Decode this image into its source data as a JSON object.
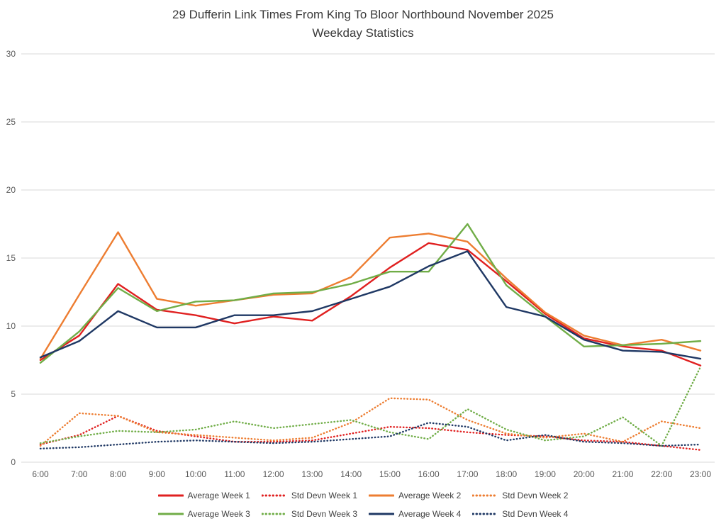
{
  "chart_data": {
    "type": "line",
    "title": "29 Dufferin Link Times From King To Bloor Northbound November 2025",
    "subtitle": "Weekday Statistics",
    "categories": [
      "6:00",
      "7:00",
      "8:00",
      "9:00",
      "10:00",
      "11:00",
      "12:00",
      "13:00",
      "14:00",
      "15:00",
      "16:00",
      "17:00",
      "18:00",
      "19:00",
      "20:00",
      "21:00",
      "22:00",
      "23:00"
    ],
    "xlabel": "",
    "ylabel": "",
    "ylim": [
      0,
      30
    ],
    "ytick_step": 5,
    "grid": "horizontal",
    "gridline_color": "#d9d9d9",
    "legend_position": "bottom",
    "series": [
      {
        "name": "Average Week 1",
        "color": "#e02020",
        "style": "solid",
        "values": [
          7.5,
          9.3,
          13.1,
          11.2,
          10.8,
          10.2,
          10.7,
          10.4,
          12.2,
          14.3,
          16.1,
          15.6,
          13.3,
          10.9,
          9.1,
          8.5,
          8.2,
          7.1
        ]
      },
      {
        "name": "Std Devn Week 1",
        "color": "#e02020",
        "style": "dotted",
        "values": [
          1.3,
          2.0,
          3.4,
          2.3,
          1.9,
          1.5,
          1.5,
          1.6,
          2.1,
          2.6,
          2.5,
          2.2,
          2.0,
          1.9,
          1.6,
          1.5,
          1.2,
          0.9
        ]
      },
      {
        "name": "Average Week 2",
        "color": "#ed7d31",
        "style": "solid",
        "values": [
          7.6,
          12.3,
          16.9,
          12.0,
          11.5,
          11.9,
          12.3,
          12.4,
          13.6,
          16.5,
          16.8,
          16.2,
          13.5,
          11.0,
          9.3,
          8.6,
          9.0,
          8.2
        ]
      },
      {
        "name": "Std Devn Week 2",
        "color": "#ed7d31",
        "style": "dotted",
        "values": [
          1.2,
          3.6,
          3.4,
          2.2,
          2.0,
          1.8,
          1.6,
          1.8,
          2.9,
          4.7,
          4.6,
          3.1,
          2.1,
          1.8,
          2.1,
          1.5,
          3.0,
          2.5
        ]
      },
      {
        "name": "Average Week 3",
        "color": "#70ad47",
        "style": "solid",
        "values": [
          7.3,
          9.6,
          12.8,
          11.1,
          11.8,
          11.9,
          12.4,
          12.5,
          13.1,
          14.0,
          14.0,
          17.5,
          13.0,
          10.7,
          8.5,
          8.6,
          8.7,
          8.9
        ]
      },
      {
        "name": "Std Devn Week 3",
        "color": "#70ad47",
        "style": "dotted",
        "values": [
          1.4,
          1.9,
          2.3,
          2.2,
          2.4,
          3.0,
          2.5,
          2.8,
          3.1,
          2.2,
          1.7,
          3.9,
          2.4,
          1.6,
          1.9,
          3.3,
          1.2,
          7.0
        ]
      },
      {
        "name": "Average Week 4",
        "color": "#1f3864",
        "style": "solid",
        "values": [
          7.7,
          8.9,
          11.1,
          9.9,
          9.9,
          10.8,
          10.8,
          11.1,
          12.0,
          12.9,
          14.4,
          15.5,
          11.4,
          10.7,
          9.0,
          8.2,
          8.1,
          7.6
        ]
      },
      {
        "name": "Std Devn Week 4",
        "color": "#1f3864",
        "style": "dotted",
        "values": [
          1.0,
          1.1,
          1.3,
          1.5,
          1.6,
          1.5,
          1.4,
          1.5,
          1.7,
          1.9,
          2.9,
          2.6,
          1.6,
          2.0,
          1.5,
          1.4,
          1.2,
          1.3
        ]
      }
    ]
  }
}
